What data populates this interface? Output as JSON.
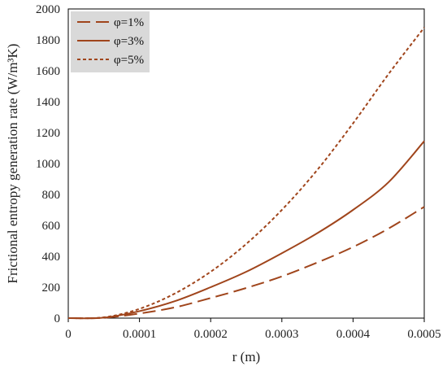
{
  "chart_data": {
    "type": "line",
    "title": "",
    "xlabel": "r (m)",
    "ylabel": "Frictional entropy generation rate (W/m³K)",
    "xlim": [
      0,
      0.0005
    ],
    "ylim": [
      0,
      2000
    ],
    "xticks": [
      "0",
      "0.0001",
      "0.0002",
      "0.0003",
      "0.0004",
      "0.0005"
    ],
    "yticks": [
      "0",
      "200",
      "400",
      "600",
      "800",
      "1000",
      "1200",
      "1400",
      "1600",
      "1800",
      "2000"
    ],
    "grid": false,
    "legend_position": "top-left",
    "x": [
      0,
      5e-05,
      0.0001,
      0.00015,
      0.0002,
      0.00025,
      0.0003,
      0.00035,
      0.0004,
      0.00045,
      0.0005
    ],
    "series": [
      {
        "name": "φ=1%",
        "style": "long-dash",
        "color": "#a0451c",
        "values": [
          0,
          2,
          30,
          70,
          130,
          195,
          270,
          360,
          460,
          580,
          720
        ]
      },
      {
        "name": "φ=3%",
        "style": "solid",
        "color": "#a0451c",
        "values": [
          0,
          3,
          45,
          110,
          200,
          300,
          420,
          550,
          700,
          880,
          1145
        ]
      },
      {
        "name": "φ=5%",
        "style": "short-dash",
        "color": "#a0451c",
        "values": [
          0,
          5,
          60,
          160,
          300,
          480,
          700,
          960,
          1260,
          1580,
          1880
        ]
      }
    ]
  }
}
